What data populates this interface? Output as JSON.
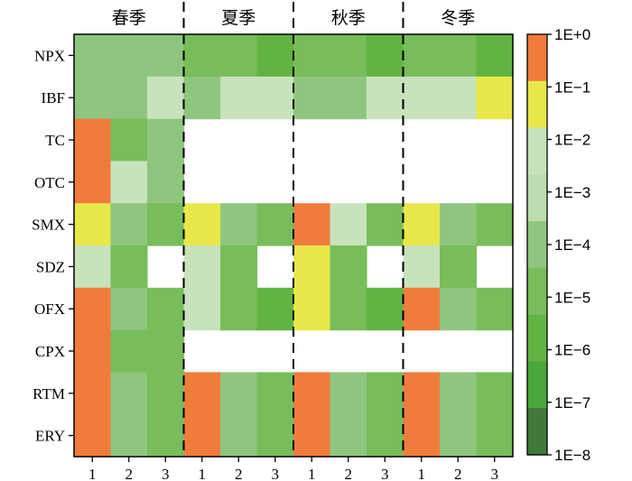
{
  "chart_data": {
    "type": "heatmap",
    "title": "",
    "xlabel": "",
    "ylabel": "",
    "seasons": [
      "春季",
      "夏季",
      "秋季",
      "冬季"
    ],
    "sites": [
      "1",
      "2",
      "3"
    ],
    "rows": [
      "NPX",
      "IBF",
      "TC",
      "OTC",
      "SMX",
      "SDZ",
      "OFX",
      "CPX",
      "RTM",
      "ERY"
    ],
    "scale": "log10",
    "colorbar": {
      "labels": [
        "1E+0",
        "1E−1",
        "1E−2",
        "1E−3",
        "1E−4",
        "1E−5",
        "1E−6",
        "1E−7",
        "1E−8"
      ],
      "exponent_range": [
        0,
        -8
      ],
      "bands": [
        {
          "from": 0,
          "to": -1,
          "color": "#f07c3c"
        },
        {
          "from": -1,
          "to": -2,
          "color": "#e8e84a"
        },
        {
          "from": -2,
          "to": -3,
          "color": "#c8e3bc"
        },
        {
          "from": -3,
          "to": -4,
          "color": "#bcdcae"
        },
        {
          "from": -4,
          "to": -5,
          "color": "#8fc67f"
        },
        {
          "from": -5,
          "to": -6,
          "color": "#78bd5a"
        },
        {
          "from": -6,
          "to": -7,
          "color": "#63b342"
        },
        {
          "from": -7,
          "to": -8,
          "color": "#4aa83a"
        },
        {
          "from": -8,
          "to": -9,
          "color": "#3f7a38"
        }
      ]
    },
    "values": [
      [
        -4.5,
        -4.5,
        -4.5,
        -5.5,
        -5.5,
        -6.0,
        -5.5,
        -5.5,
        -6.0,
        -5.5,
        -5.5,
        -6.0
      ],
      [
        -4.5,
        -4.5,
        -2.5,
        -4.5,
        -2.5,
        -2.5,
        -4.5,
        -4.5,
        -2.5,
        -2.5,
        -2.5,
        -1.5
      ],
      [
        -0.5,
        -5.5,
        -4.5,
        null,
        null,
        null,
        null,
        null,
        null,
        null,
        null,
        null
      ],
      [
        -0.5,
        -2.5,
        -4.5,
        null,
        null,
        null,
        null,
        null,
        null,
        null,
        null,
        null
      ],
      [
        -1.5,
        -4.5,
        -5.5,
        -1.5,
        -4.5,
        -5.5,
        -0.5,
        -2.5,
        -5.5,
        -1.5,
        -4.5,
        -5.5
      ],
      [
        -2.5,
        -5.5,
        null,
        -2.5,
        -5.5,
        null,
        -1.5,
        -5.5,
        null,
        -2.5,
        -5.5,
        null
      ],
      [
        -0.5,
        -4.5,
        -5.5,
        -2.5,
        -5.5,
        -6.5,
        -1.5,
        -5.5,
        -6.5,
        -0.5,
        -4.5,
        -5.5
      ],
      [
        -0.5,
        -5.5,
        -5.5,
        null,
        null,
        null,
        null,
        null,
        null,
        null,
        null,
        null
      ],
      [
        -0.5,
        -4.5,
        -5.5,
        -0.5,
        -4.5,
        -5.5,
        -0.5,
        -4.5,
        -5.5,
        -0.5,
        -4.5,
        -5.5
      ],
      [
        -0.5,
        -4.5,
        -5.5,
        -0.5,
        -4.5,
        -5.5,
        -0.5,
        -4.5,
        -5.5,
        -0.5,
        -4.5,
        -5.5
      ]
    ],
    "grid": false,
    "legend": "right"
  }
}
